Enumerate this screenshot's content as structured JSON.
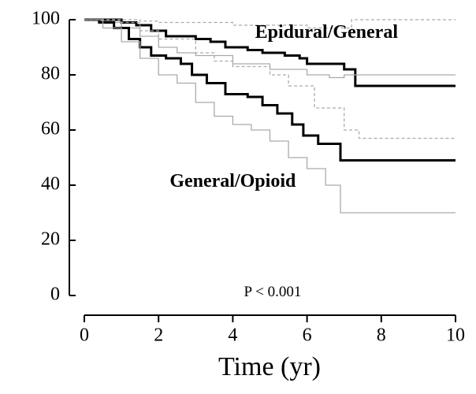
{
  "chart_data": {
    "type": "step",
    "x_label": "Time (yr)",
    "annotations": [
      {
        "text": "Epidural/General",
        "x": 4.6,
        "y": 95
      },
      {
        "text": "General/Opioid",
        "x": 2.3,
        "y": 41
      },
      {
        "text": "P < 0.001",
        "x": 4.3,
        "y": 1
      }
    ],
    "xlim": [
      0,
      10
    ],
    "xticks": [
      0,
      2,
      4,
      6,
      8,
      10
    ],
    "ylim": [
      0,
      100
    ],
    "yticks": [
      0,
      20,
      40,
      60,
      80,
      100
    ],
    "series": [
      {
        "color": "#000000",
        "width": 3,
        "dash": false,
        "x": [
          0,
          0.6,
          1,
          1.4,
          1.8,
          2.2,
          3,
          3.4,
          3.8,
          4.4,
          4.8,
          5.4,
          5.8,
          6,
          7,
          7.3,
          10
        ],
        "values": [
          100,
          100,
          99,
          98,
          96,
          94,
          93,
          92,
          90,
          89,
          88,
          87,
          86,
          84,
          82,
          76,
          76
        ]
      },
      {
        "color": "#aaaaaa",
        "width": 1.3,
        "dash": true,
        "x": [
          0,
          1,
          1.5,
          2,
          4,
          6,
          7.2,
          10
        ],
        "values": [
          100,
          100,
          99.5,
          99,
          98,
          97,
          100,
          100
        ]
      },
      {
        "color": "#aaaaaa",
        "width": 1.3,
        "dash": false,
        "x": [
          0,
          0.5,
          1,
          1.5,
          2,
          2.5,
          3,
          4,
          5,
          6,
          6.6,
          7,
          10
        ],
        "values": [
          100,
          99,
          97,
          94,
          90,
          88,
          87,
          84,
          82,
          80,
          79,
          80,
          80
        ]
      },
      {
        "color": "#000000",
        "width": 3,
        "dash": false,
        "x": [
          0,
          0.4,
          0.8,
          1.2,
          1.5,
          1.8,
          2.2,
          2.6,
          2.9,
          3.3,
          3.8,
          4.4,
          4.8,
          5.2,
          5.6,
          5.9,
          6.3,
          6.9,
          10
        ],
        "values": [
          100,
          99,
          97,
          93,
          90,
          87,
          86,
          84,
          80,
          77,
          73,
          72,
          69,
          66,
          62,
          58,
          55,
          49,
          49
        ]
      },
      {
        "color": "#aaaaaa",
        "width": 1.3,
        "dash": true,
        "x": [
          0,
          1,
          1.5,
          2,
          3,
          3.5,
          4,
          5,
          5.5,
          6.2,
          7,
          7.4,
          10
        ],
        "values": [
          100,
          99,
          96,
          93,
          88,
          85,
          83,
          80,
          76,
          68,
          60,
          57,
          57
        ]
      },
      {
        "color": "#aaaaaa",
        "width": 1.3,
        "dash": false,
        "x": [
          0,
          0.5,
          1,
          1.5,
          2,
          2.5,
          3,
          3.5,
          4,
          4.5,
          5,
          5.5,
          6,
          6.5,
          6.9,
          10
        ],
        "values": [
          100,
          97,
          92,
          86,
          80,
          77,
          70,
          65,
          62,
          60,
          56,
          50,
          46,
          40,
          30,
          30
        ]
      }
    ]
  }
}
